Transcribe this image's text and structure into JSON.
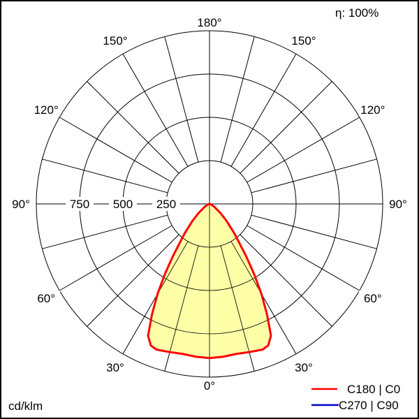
{
  "chart_data": {
    "type": "polar",
    "efficiency_label": "η: 100%",
    "unit_label": "cd/klm",
    "radial_ticks": [
      250,
      500,
      750,
      1000
    ],
    "radial_tick_labels": [
      "250",
      "500",
      "750"
    ],
    "rmax": 1000,
    "angle_labels": [
      "180°",
      "150°",
      "120°",
      "90°",
      "60°",
      "30°",
      "0°"
    ],
    "angle_label_values": [
      180,
      150,
      120,
      90,
      60,
      30,
      0
    ],
    "spoke_step_deg": 15,
    "grid": true,
    "fill_color": "#ffff99",
    "legend_position": "bottom-right",
    "series": [
      {
        "name": "C180 | C0",
        "color": "#ff0000",
        "gamma": [
          0,
          5,
          10,
          15,
          20,
          22.5,
          25,
          27.5,
          30,
          32.5,
          35,
          40,
          45,
          50,
          60,
          70,
          80,
          90
        ],
        "values": [
          890,
          886,
          880,
          886,
          895,
          885,
          840,
          720,
          600,
          478,
          370,
          225,
          140,
          85,
          30,
          10,
          3,
          0
        ]
      },
      {
        "name": "C270 | C90",
        "color": "#0000cc",
        "gamma": [],
        "values": []
      }
    ]
  }
}
